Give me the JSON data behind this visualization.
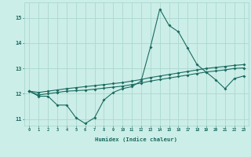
{
  "xlabel": "Humidex (Indice chaleur)",
  "background_color": "#cceee8",
  "grid_color": "#aad8d0",
  "line_color": "#1a6b60",
  "xlim": [
    -0.5,
    23.5
  ],
  "ylim": [
    10.75,
    15.6
  ],
  "yticks": [
    11,
    12,
    13,
    14,
    15
  ],
  "xticks": [
    0,
    1,
    2,
    3,
    4,
    5,
    6,
    7,
    8,
    9,
    10,
    11,
    12,
    13,
    14,
    15,
    16,
    17,
    18,
    19,
    20,
    21,
    22,
    23
  ],
  "series": {
    "line1": [
      12.1,
      11.9,
      11.9,
      11.55,
      11.55,
      11.05,
      10.82,
      11.05,
      11.75,
      12.05,
      12.2,
      12.28,
      12.5,
      13.85,
      15.35,
      14.7,
      14.45,
      13.8,
      13.15,
      12.85,
      12.55,
      12.2,
      12.6,
      12.7
    ],
    "line2": [
      12.1,
      11.95,
      12.0,
      12.05,
      12.1,
      12.12,
      12.14,
      12.18,
      12.22,
      12.26,
      12.3,
      12.36,
      12.42,
      12.5,
      12.56,
      12.62,
      12.68,
      12.74,
      12.8,
      12.86,
      12.9,
      12.94,
      13.0,
      13.02
    ],
    "line3": [
      12.1,
      12.05,
      12.1,
      12.15,
      12.2,
      12.24,
      12.28,
      12.32,
      12.36,
      12.4,
      12.44,
      12.5,
      12.56,
      12.64,
      12.7,
      12.76,
      12.82,
      12.88,
      12.94,
      13.0,
      13.04,
      13.08,
      13.12,
      13.15
    ]
  }
}
